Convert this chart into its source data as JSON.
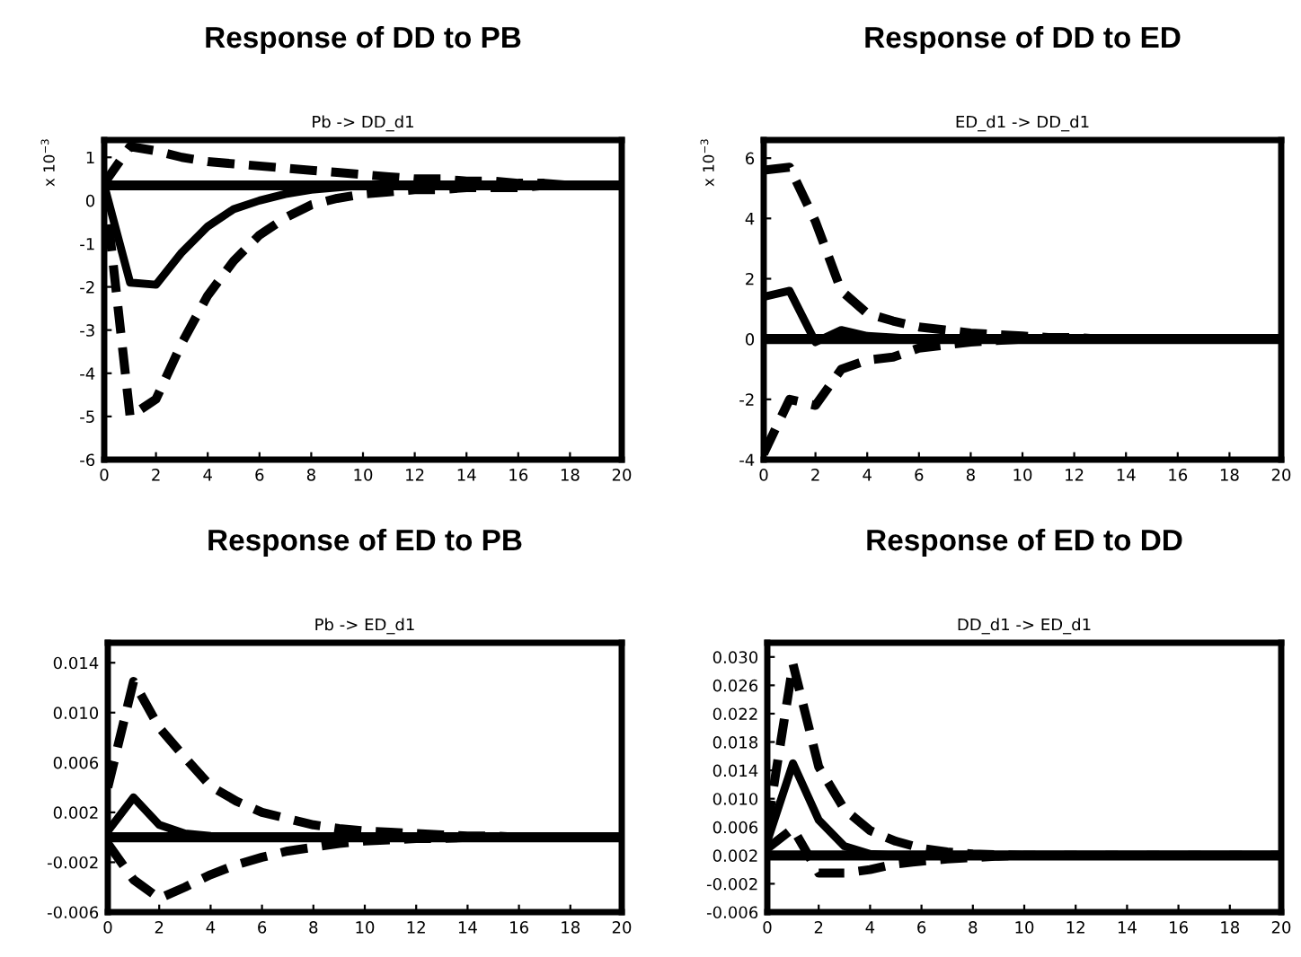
{
  "chart_data": [
    {
      "type": "line",
      "title": "Response of DD to PB",
      "subtitle": "Pb -> DD_d1",
      "ylabel": "x 10$^{−3}$",
      "x": [
        0,
        1,
        2,
        3,
        4,
        5,
        6,
        7,
        8,
        9,
        10,
        11,
        12,
        13,
        14,
        15,
        16,
        17,
        18,
        19,
        20
      ],
      "xlim": [
        0,
        20
      ],
      "xticks": [
        0,
        2,
        4,
        6,
        8,
        10,
        12,
        14,
        16,
        18,
        20
      ],
      "ylim": [
        -6,
        1.4
      ],
      "yticks": [
        -6,
        -5,
        -4,
        -3,
        -2,
        -1,
        0,
        1
      ],
      "grid": false,
      "legend": false,
      "ref_lines": [
        {
          "axis": "y",
          "value": 0.35,
          "color": "#000000",
          "line_style": "solid"
        }
      ],
      "series": [
        {
          "color": "#000000",
          "line_style": "solid",
          "values": [
            0.35,
            -1.9,
            -1.95,
            -1.2,
            -0.6,
            -0.2,
            0.0,
            0.15,
            0.25,
            0.3,
            0.35,
            0.35,
            0.35,
            0.35,
            0.35,
            0.35,
            0.35,
            0.35,
            0.35,
            0.35,
            0.35
          ]
        },
        {
          "color": "#000000",
          "line_style": "dashed",
          "values": [
            0.4,
            1.25,
            1.15,
            1.0,
            0.9,
            0.85,
            0.8,
            0.75,
            0.7,
            0.65,
            0.6,
            0.55,
            0.5,
            0.5,
            0.45,
            0.45,
            0.4,
            0.4,
            0.35,
            0.35,
            0.35
          ]
        },
        {
          "color": "#000000",
          "line_style": "dashed",
          "values": [
            0.4,
            -5.0,
            -4.6,
            -3.3,
            -2.2,
            -1.4,
            -0.8,
            -0.4,
            -0.1,
            0.05,
            0.15,
            0.2,
            0.25,
            0.25,
            0.3,
            0.3,
            0.3,
            0.35,
            0.35,
            0.35,
            0.35
          ]
        }
      ]
    },
    {
      "type": "line",
      "title": "Response of DD to ED",
      "subtitle": "ED_d1 -> DD_d1",
      "ylabel": "x 10$^{−3}$",
      "x": [
        0,
        1,
        2,
        3,
        4,
        5,
        6,
        7,
        8,
        9,
        10,
        11,
        12,
        13,
        14,
        15,
        16,
        17,
        18,
        19,
        20
      ],
      "xlim": [
        0,
        20
      ],
      "xticks": [
        0,
        2,
        4,
        6,
        8,
        10,
        12,
        14,
        16,
        18,
        20
      ],
      "ylim": [
        -4,
        6.6
      ],
      "yticks": [
        -4,
        -2,
        0,
        2,
        4,
        6
      ],
      "grid": false,
      "legend": false,
      "ref_lines": [
        {
          "axis": "y",
          "value": 0,
          "color": "#000000",
          "line_style": "solid"
        }
      ],
      "series": [
        {
          "color": "#000000",
          "line_style": "solid",
          "values": [
            1.4,
            1.6,
            -0.1,
            0.3,
            0.1,
            0.05,
            0,
            0,
            0,
            0,
            0,
            0,
            0,
            0,
            0,
            0,
            0,
            0,
            0,
            0,
            0
          ]
        },
        {
          "color": "#000000",
          "line_style": "dashed",
          "values": [
            5.6,
            5.7,
            3.9,
            1.6,
            0.85,
            0.6,
            0.4,
            0.3,
            0.2,
            0.15,
            0.1,
            0.05,
            0.05,
            0,
            0,
            0,
            0,
            0,
            0,
            0,
            0
          ]
        },
        {
          "color": "#000000",
          "line_style": "dashed",
          "values": [
            -3.8,
            -2.0,
            -2.2,
            -1.0,
            -0.7,
            -0.6,
            -0.3,
            -0.2,
            -0.1,
            -0.05,
            0,
            0,
            0,
            0,
            0,
            0,
            0,
            0,
            0,
            0,
            0
          ]
        }
      ]
    },
    {
      "type": "line",
      "title": "Response of ED to PB",
      "subtitle": "Pb -> ED_d1",
      "x": [
        0,
        1,
        2,
        3,
        4,
        5,
        6,
        7,
        8,
        9,
        10,
        11,
        12,
        13,
        14,
        15,
        16,
        17,
        18,
        19,
        20
      ],
      "xlim": [
        0,
        20
      ],
      "xticks": [
        0,
        2,
        4,
        6,
        8,
        10,
        12,
        14,
        16,
        18,
        20
      ],
      "ylim": [
        -0.006,
        0.0156
      ],
      "yticks": [
        {
          "value": -0.006,
          "label": "-0.006"
        },
        {
          "value": -0.002,
          "label": "-0.002"
        },
        {
          "value": 0.002,
          "label": "0.002"
        },
        {
          "value": 0.006,
          "label": "0.006"
        },
        {
          "value": 0.01,
          "label": "0.010"
        },
        {
          "value": 0.014,
          "label": "0.014"
        }
      ],
      "grid": false,
      "legend": false,
      "ref_lines": [
        {
          "axis": "y",
          "value": 0,
          "color": "#000000",
          "line_style": "solid"
        }
      ],
      "series": [
        {
          "color": "#000000",
          "line_style": "solid",
          "values": [
            0.0005,
            0.0032,
            0.001,
            0.0003,
            0.0001,
            0,
            0,
            0,
            0,
            0,
            0,
            0,
            0,
            0,
            0,
            0,
            0,
            0,
            0,
            0,
            0
          ]
        },
        {
          "color": "#000000",
          "line_style": "dashed",
          "values": [
            0.004,
            0.0125,
            0.0088,
            0.0064,
            0.0041,
            0.0029,
            0.002,
            0.0015,
            0.001,
            0.0007,
            0.0005,
            0.0004,
            0.0003,
            0.0002,
            0.0001,
            0.0001,
            0,
            0,
            0,
            0,
            0
          ]
        },
        {
          "color": "#000000",
          "line_style": "dashed",
          "values": [
            -0.0005,
            -0.0034,
            -0.0049,
            -0.004,
            -0.003,
            -0.0022,
            -0.0016,
            -0.0011,
            -0.0008,
            -0.0005,
            -0.0003,
            -0.0002,
            -0.0001,
            -0.0001,
            0,
            0,
            0,
            0,
            0,
            0,
            0
          ]
        }
      ]
    },
    {
      "type": "line",
      "title": "Response of ED to DD",
      "subtitle": "DD_d1 -> ED_d1",
      "x": [
        0,
        1,
        2,
        3,
        4,
        5,
        6,
        7,
        8,
        9,
        10,
        11,
        12,
        13,
        14,
        15,
        16,
        17,
        18,
        19,
        20
      ],
      "xlim": [
        0,
        20
      ],
      "xticks": [
        0,
        2,
        4,
        6,
        8,
        10,
        12,
        14,
        16,
        18,
        20
      ],
      "ylim": [
        -0.006,
        0.032
      ],
      "yticks": [
        {
          "value": -0.006,
          "label": "-0.006"
        },
        {
          "value": -0.002,
          "label": "-0.002"
        },
        {
          "value": 0.002,
          "label": "0.002"
        },
        {
          "value": 0.006,
          "label": "0.006"
        },
        {
          "value": 0.01,
          "label": "0.010"
        },
        {
          "value": 0.014,
          "label": "0.014"
        },
        {
          "value": 0.018,
          "label": "0.018"
        },
        {
          "value": 0.022,
          "label": "0.022"
        },
        {
          "value": 0.026,
          "label": "0.026"
        },
        {
          "value": 0.03,
          "label": "0.030"
        }
      ],
      "grid": false,
      "legend": false,
      "ref_lines": [
        {
          "axis": "y",
          "value": 0.002,
          "color": "#000000",
          "line_style": "solid"
        }
      ],
      "series": [
        {
          "color": "#000000",
          "line_style": "solid",
          "values": [
            0.004,
            0.015,
            0.007,
            0.0033,
            0.0022,
            0.002,
            0.002,
            0.002,
            0.002,
            0.002,
            0.002,
            0.002,
            0.002,
            0.002,
            0.002,
            0.002,
            0.002,
            0.002,
            0.002,
            0.002,
            0.002
          ]
        },
        {
          "color": "#000000",
          "line_style": "dashed",
          "values": [
            0.006,
            0.029,
            0.0145,
            0.0085,
            0.0055,
            0.004,
            0.003,
            0.0025,
            0.0022,
            0.0021,
            0.002,
            0.002,
            0.002,
            0.002,
            0.002,
            0.002,
            0.002,
            0.002,
            0.002,
            0.002,
            0.002
          ]
        },
        {
          "color": "#000000",
          "line_style": "dashed",
          "values": [
            0.003,
            0.0058,
            -0.0005,
            -0.0005,
            0.0,
            0.0008,
            0.0012,
            0.0015,
            0.0017,
            0.0019,
            0.002,
            0.002,
            0.002,
            0.002,
            0.002,
            0.002,
            0.002,
            0.002,
            0.002,
            0.002,
            0.002
          ]
        }
      ]
    }
  ]
}
